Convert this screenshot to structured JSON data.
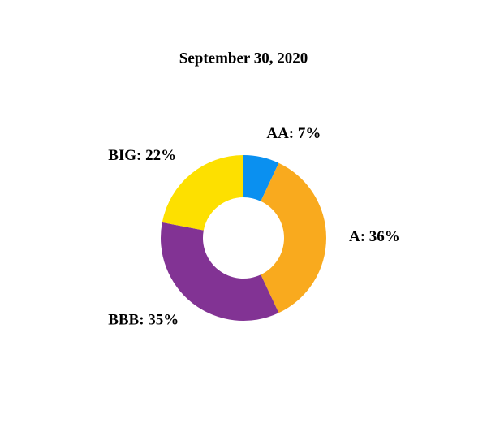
{
  "chart_data": {
    "type": "donut",
    "title": "September 30, 2020",
    "categories": [
      "AA",
      "A",
      "BBB",
      "BIG"
    ],
    "values": [
      7,
      36,
      35,
      22
    ],
    "value_labels": [
      ": 7%",
      ": 36%",
      ": 35%",
      ": 22%"
    ],
    "colors": [
      "#0a90f0",
      "#f9aa1e",
      "#823394",
      "#fde000"
    ]
  }
}
